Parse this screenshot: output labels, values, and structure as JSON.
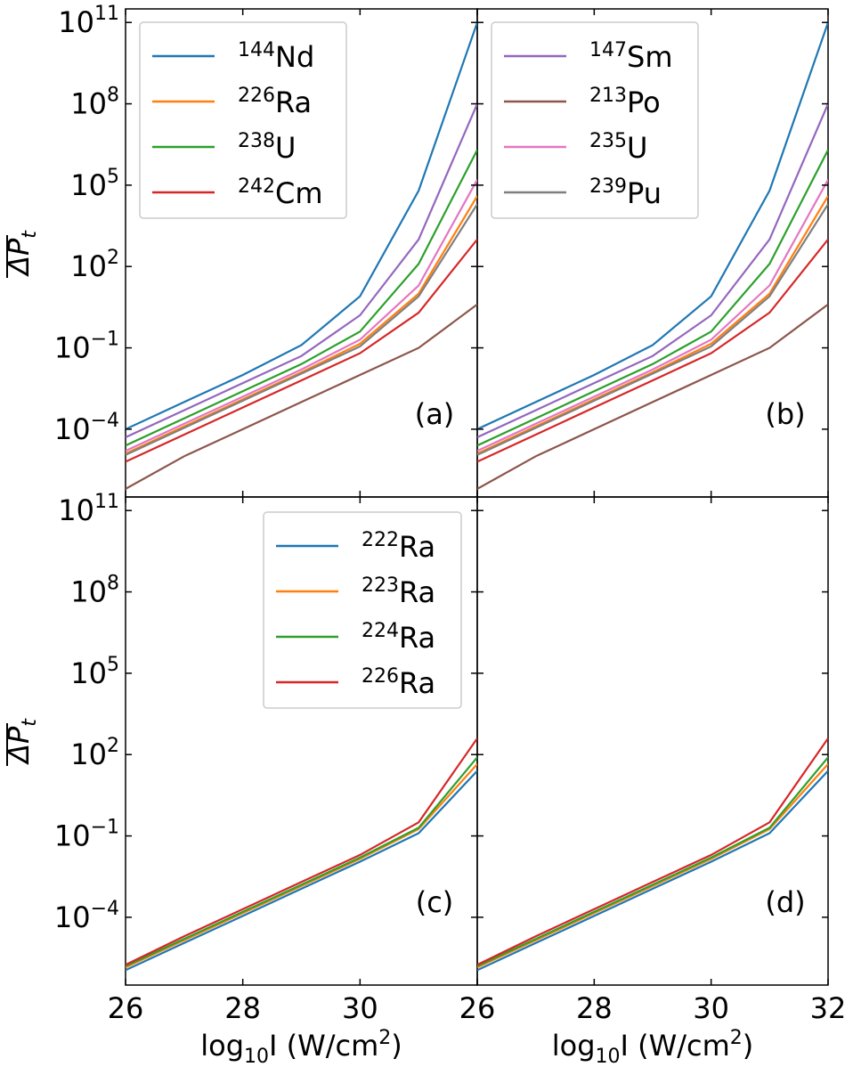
{
  "chart_data": {
    "type": "line",
    "x_ticks": [
      26,
      28,
      30,
      32
    ],
    "x_tick_labels": {
      "left": [
        "26",
        "28",
        "30",
        "26"
      ],
      "right": [
        "28",
        "30",
        "32"
      ]
    },
    "x_axis_label": {
      "pre": "log",
      "sub": "10",
      "mid": "I (W/cm",
      "sup": "2",
      "post": ")"
    },
    "y_axis_label": "ΔP",
    "y_axis_label_sub": "t",
    "y_scale": "log",
    "y_ticks": [
      {
        "base": "10",
        "exp": "11",
        "value": 11
      },
      {
        "base": "10",
        "exp": "8",
        "value": 8
      },
      {
        "base": "10",
        "exp": "5",
        "value": 5
      },
      {
        "base": "10",
        "exp": "2",
        "value": 2
      },
      {
        "base": "10",
        "exp": "−1",
        "value": -1
      },
      {
        "base": "10",
        "exp": "−4",
        "value": -4
      }
    ],
    "xlim": [
      26,
      32
    ],
    "ylim_log10": [
      -6.5,
      11.5
    ],
    "x": [
      26,
      27,
      28,
      29,
      30,
      31,
      32
    ],
    "top_series": [
      {
        "name": "144Nd",
        "mass": "144",
        "sym": "Nd",
        "color": "#1f77b4",
        "log10_values": [
          -4.0,
          -3.0,
          -2.0,
          -0.9,
          0.9,
          4.8,
          11.0
        ]
      },
      {
        "name": "147Sm",
        "mass": "147",
        "sym": "Sm",
        "color": "#9467bd",
        "log10_values": [
          -4.3,
          -3.3,
          -2.3,
          -1.3,
          0.2,
          3.0,
          8.0
        ]
      },
      {
        "name": "238U",
        "mass": "238",
        "sym": "U",
        "color": "#2ca02c",
        "log10_values": [
          -4.6,
          -3.6,
          -2.6,
          -1.6,
          -0.4,
          2.1,
          6.3
        ]
      },
      {
        "name": "235U",
        "mass": "235",
        "sym": "U",
        "color": "#e377c2",
        "log10_values": [
          -4.8,
          -3.8,
          -2.8,
          -1.8,
          -0.7,
          1.3,
          5.2
        ]
      },
      {
        "name": "226Ra",
        "mass": "226",
        "sym": "Ra",
        "color": "#ff7f0e",
        "log10_values": [
          -4.9,
          -3.9,
          -2.9,
          -1.9,
          -0.85,
          1.0,
          4.6
        ]
      },
      {
        "name": "239Pu",
        "mass": "239",
        "sym": "Pu",
        "color": "#7f7f7f",
        "log10_values": [
          -4.95,
          -3.95,
          -2.95,
          -1.95,
          -0.95,
          0.9,
          4.3
        ]
      },
      {
        "name": "242Cm",
        "mass": "242",
        "sym": "Cm",
        "color": "#d62728",
        "log10_values": [
          -5.2,
          -4.2,
          -3.2,
          -2.2,
          -1.2,
          0.3,
          3.0
        ]
      },
      {
        "name": "213Po",
        "mass": "213",
        "sym": "Po",
        "color": "#8c564b",
        "log10_values": [
          -6.2,
          -5.0,
          -4.0,
          -3.0,
          -2.0,
          -1.0,
          0.6
        ]
      }
    ],
    "bottom_series": [
      {
        "name": "222Ra",
        "mass": "222",
        "sym": "Ra",
        "color": "#1f77b4",
        "log10_values": [
          -5.95,
          -4.95,
          -3.95,
          -2.95,
          -1.95,
          -0.9,
          1.4
        ]
      },
      {
        "name": "223Ra",
        "mass": "223",
        "sym": "Ra",
        "color": "#ff7f0e",
        "log10_values": [
          -5.85,
          -4.85,
          -3.85,
          -2.85,
          -1.85,
          -0.75,
          1.65
        ]
      },
      {
        "name": "224Ra",
        "mass": "224",
        "sym": "Ra",
        "color": "#2ca02c",
        "log10_values": [
          -5.8,
          -4.8,
          -3.8,
          -2.8,
          -1.8,
          -0.7,
          1.9
        ]
      },
      {
        "name": "226Ra",
        "mass": "226",
        "sym": "Ra",
        "color": "#d62728",
        "log10_values": [
          -5.75,
          -4.7,
          -3.7,
          -2.7,
          -1.7,
          -0.5,
          2.6
        ]
      }
    ],
    "panels": [
      {
        "id": "a",
        "label": "(a)",
        "group": "top",
        "legend": [
          "144Nd",
          "226Ra",
          "238U",
          "242Cm"
        ]
      },
      {
        "id": "b",
        "label": "(b)",
        "group": "top",
        "legend": [
          "147Sm",
          "213Po",
          "235U",
          "239Pu"
        ]
      },
      {
        "id": "c",
        "label": "(c)",
        "group": "bottom",
        "legend": [
          "222Ra",
          "223Ra",
          "224Ra",
          "226Ra"
        ]
      },
      {
        "id": "d",
        "label": "(d)",
        "group": "bottom",
        "legend": []
      }
    ]
  }
}
